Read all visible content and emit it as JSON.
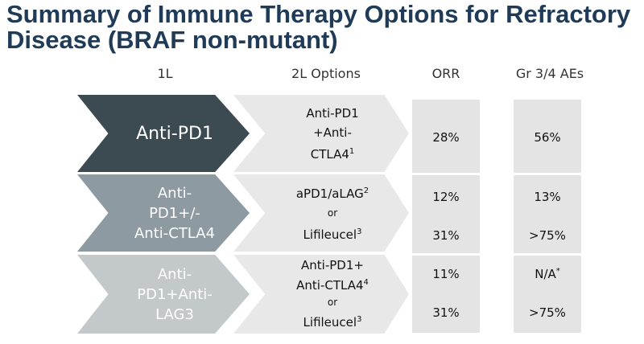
{
  "title": "Summary of Immune Therapy Options for Refractory Disease (BRAF non-mutant)",
  "headers": {
    "first_line": "1L",
    "second_line": "2L Options",
    "orr": "ORR",
    "ae": "Gr 3/4 AEs"
  },
  "rows": [
    {
      "first_line": [
        "Anti-PD1"
      ],
      "second_line": {
        "line1": "Anti-PD1",
        "line2": "+Anti-",
        "line3": "CTLA4",
        "line3_sup": "1"
      },
      "orr": [
        "28%"
      ],
      "ae": [
        "56%"
      ]
    },
    {
      "first_line": [
        "Anti-",
        "PD1+/-",
        "Anti-CTLA4"
      ],
      "second_line": {
        "line1": "aPD1/aLAG",
        "line1_sup": "2",
        "or": "or",
        "line3": "Lifileucel",
        "line3_sup": "3"
      },
      "orr": [
        "12%",
        "31%"
      ],
      "ae": [
        "13%",
        ">75%"
      ]
    },
    {
      "first_line": [
        "Anti-",
        "PD1+Anti-",
        "LAG3"
      ],
      "second_line": {
        "line1": "Anti-PD1+",
        "line2": "Anti-CTLA4",
        "line2_sup": "4",
        "or": "or",
        "line3": "Lifileucel",
        "line3_sup": "3"
      },
      "orr": [
        "11%",
        "31%"
      ],
      "ae": [
        "N/A",
        ">75%"
      ],
      "ae_first_sup": "*"
    }
  ],
  "colors": {
    "title": "#1f3b57",
    "row1": "#3c4a52",
    "row2": "#8d9aa1",
    "row3": "#c3c8cb",
    "option_bg": "#e8e8e8",
    "value_bg": "#e4e4e4"
  }
}
